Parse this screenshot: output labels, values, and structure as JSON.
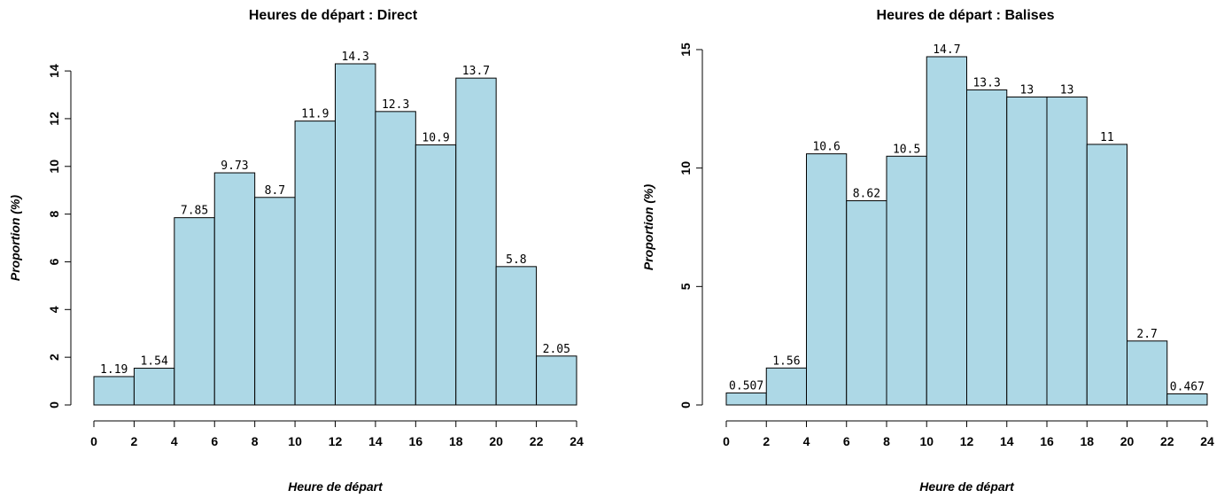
{
  "colors": {
    "bar_fill": "#add8e6",
    "bar_stroke": "#000000"
  },
  "chart_data": [
    {
      "type": "bar",
      "title": "Heures de départ :  Direct",
      "xlabel": "Heure de départ",
      "ylabel": "Proportion (%)",
      "bin_edges": [
        0,
        2,
        4,
        6,
        8,
        10,
        12,
        14,
        16,
        18,
        20,
        22,
        24
      ],
      "values": [
        1.19,
        1.54,
        7.85,
        9.73,
        8.7,
        11.9,
        14.3,
        12.3,
        10.9,
        13.7,
        5.8,
        2.05
      ],
      "value_labels": [
        "1.19",
        "1.54",
        "7.85",
        "9.73",
        "8.7",
        "11.9",
        "14.3",
        "12.3",
        "10.9",
        "13.7",
        "5.8",
        "2.05"
      ],
      "xticks": [
        0,
        2,
        4,
        6,
        8,
        10,
        12,
        14,
        16,
        18,
        20,
        22,
        24
      ],
      "yticks": [
        0,
        2,
        4,
        6,
        8,
        10,
        12,
        14
      ],
      "xlim": [
        0,
        24
      ],
      "ylim": [
        0,
        14.3
      ],
      "grid": false,
      "legend": "none"
    },
    {
      "type": "bar",
      "title": "Heures de départ :  Balises",
      "xlabel": "Heure de départ",
      "ylabel": "Proportion (%)",
      "bin_edges": [
        0,
        2,
        4,
        6,
        8,
        10,
        12,
        14,
        16,
        18,
        20,
        22,
        24
      ],
      "values": [
        0.507,
        1.56,
        10.6,
        8.62,
        10.5,
        14.7,
        13.3,
        13,
        13,
        11,
        2.7,
        0.467
      ],
      "value_labels": [
        "0.507",
        "1.56",
        "10.6",
        "8.62",
        "10.5",
        "14.7",
        "13.3",
        "13",
        "13",
        "11",
        "2.7",
        "0.467"
      ],
      "xticks": [
        0,
        2,
        4,
        6,
        8,
        10,
        12,
        14,
        16,
        18,
        20,
        22,
        24
      ],
      "yticks": [
        0,
        5,
        10,
        15
      ],
      "xlim": [
        0,
        24
      ],
      "ylim": [
        0,
        14.7
      ],
      "grid": false,
      "legend": "none"
    }
  ]
}
